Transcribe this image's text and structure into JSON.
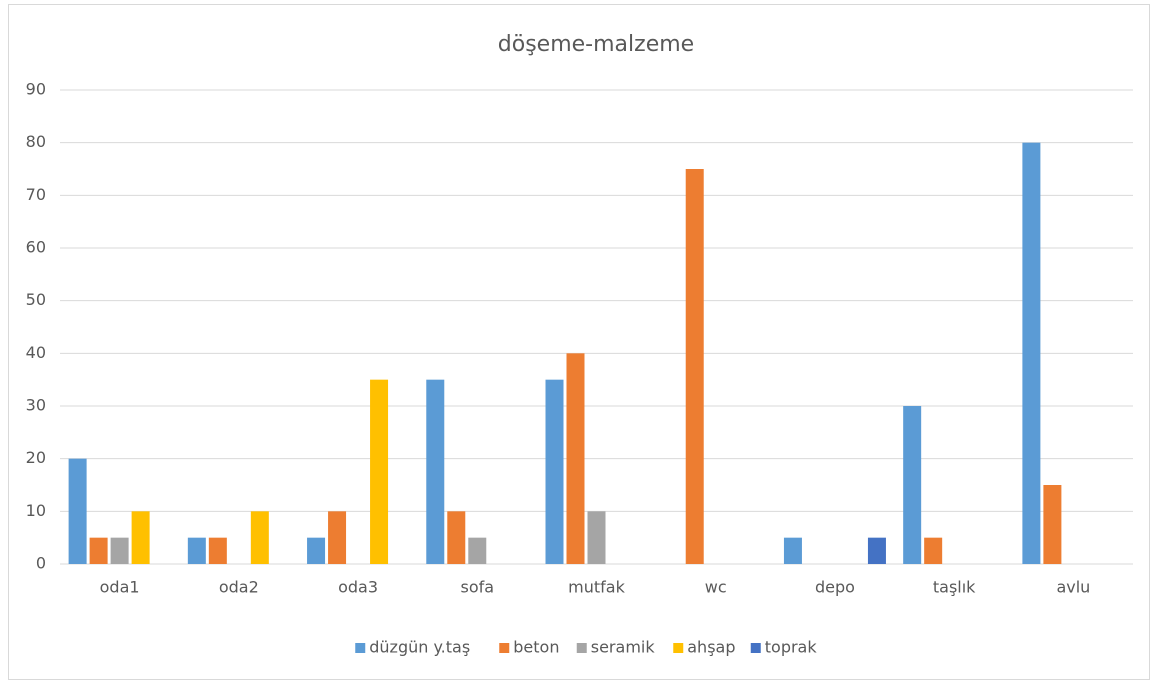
{
  "chart_data": {
    "type": "bar",
    "title": "döşeme-malzeme",
    "categories": [
      "oda1",
      "oda2",
      "oda3",
      "sofa",
      "mutfak",
      "wc",
      "depo",
      "taşlık",
      "avlu"
    ],
    "series": [
      {
        "name": "düzgün y.taş",
        "color": "#5b9bd5",
        "values": [
          20,
          5,
          5,
          35,
          35,
          0,
          5,
          30,
          80
        ]
      },
      {
        "name": "beton",
        "color": "#ed7d31",
        "values": [
          5,
          5,
          10,
          10,
          40,
          75,
          0,
          5,
          15
        ]
      },
      {
        "name": "seramik",
        "color": "#a5a5a5",
        "values": [
          5,
          0,
          0,
          5,
          10,
          0,
          0,
          0,
          0
        ]
      },
      {
        "name": "ahşap",
        "color": "#ffc000",
        "values": [
          10,
          10,
          35,
          0,
          0,
          0,
          0,
          0,
          0
        ]
      },
      {
        "name": "toprak",
        "color": "#4472c4",
        "values": [
          0,
          0,
          0,
          0,
          0,
          0,
          5,
          0,
          0
        ]
      }
    ],
    "ylim": [
      0,
      90
    ],
    "yticks": [
      0,
      10,
      20,
      30,
      40,
      50,
      60,
      70,
      80,
      90
    ],
    "grid": true,
    "legend": "bottom"
  }
}
